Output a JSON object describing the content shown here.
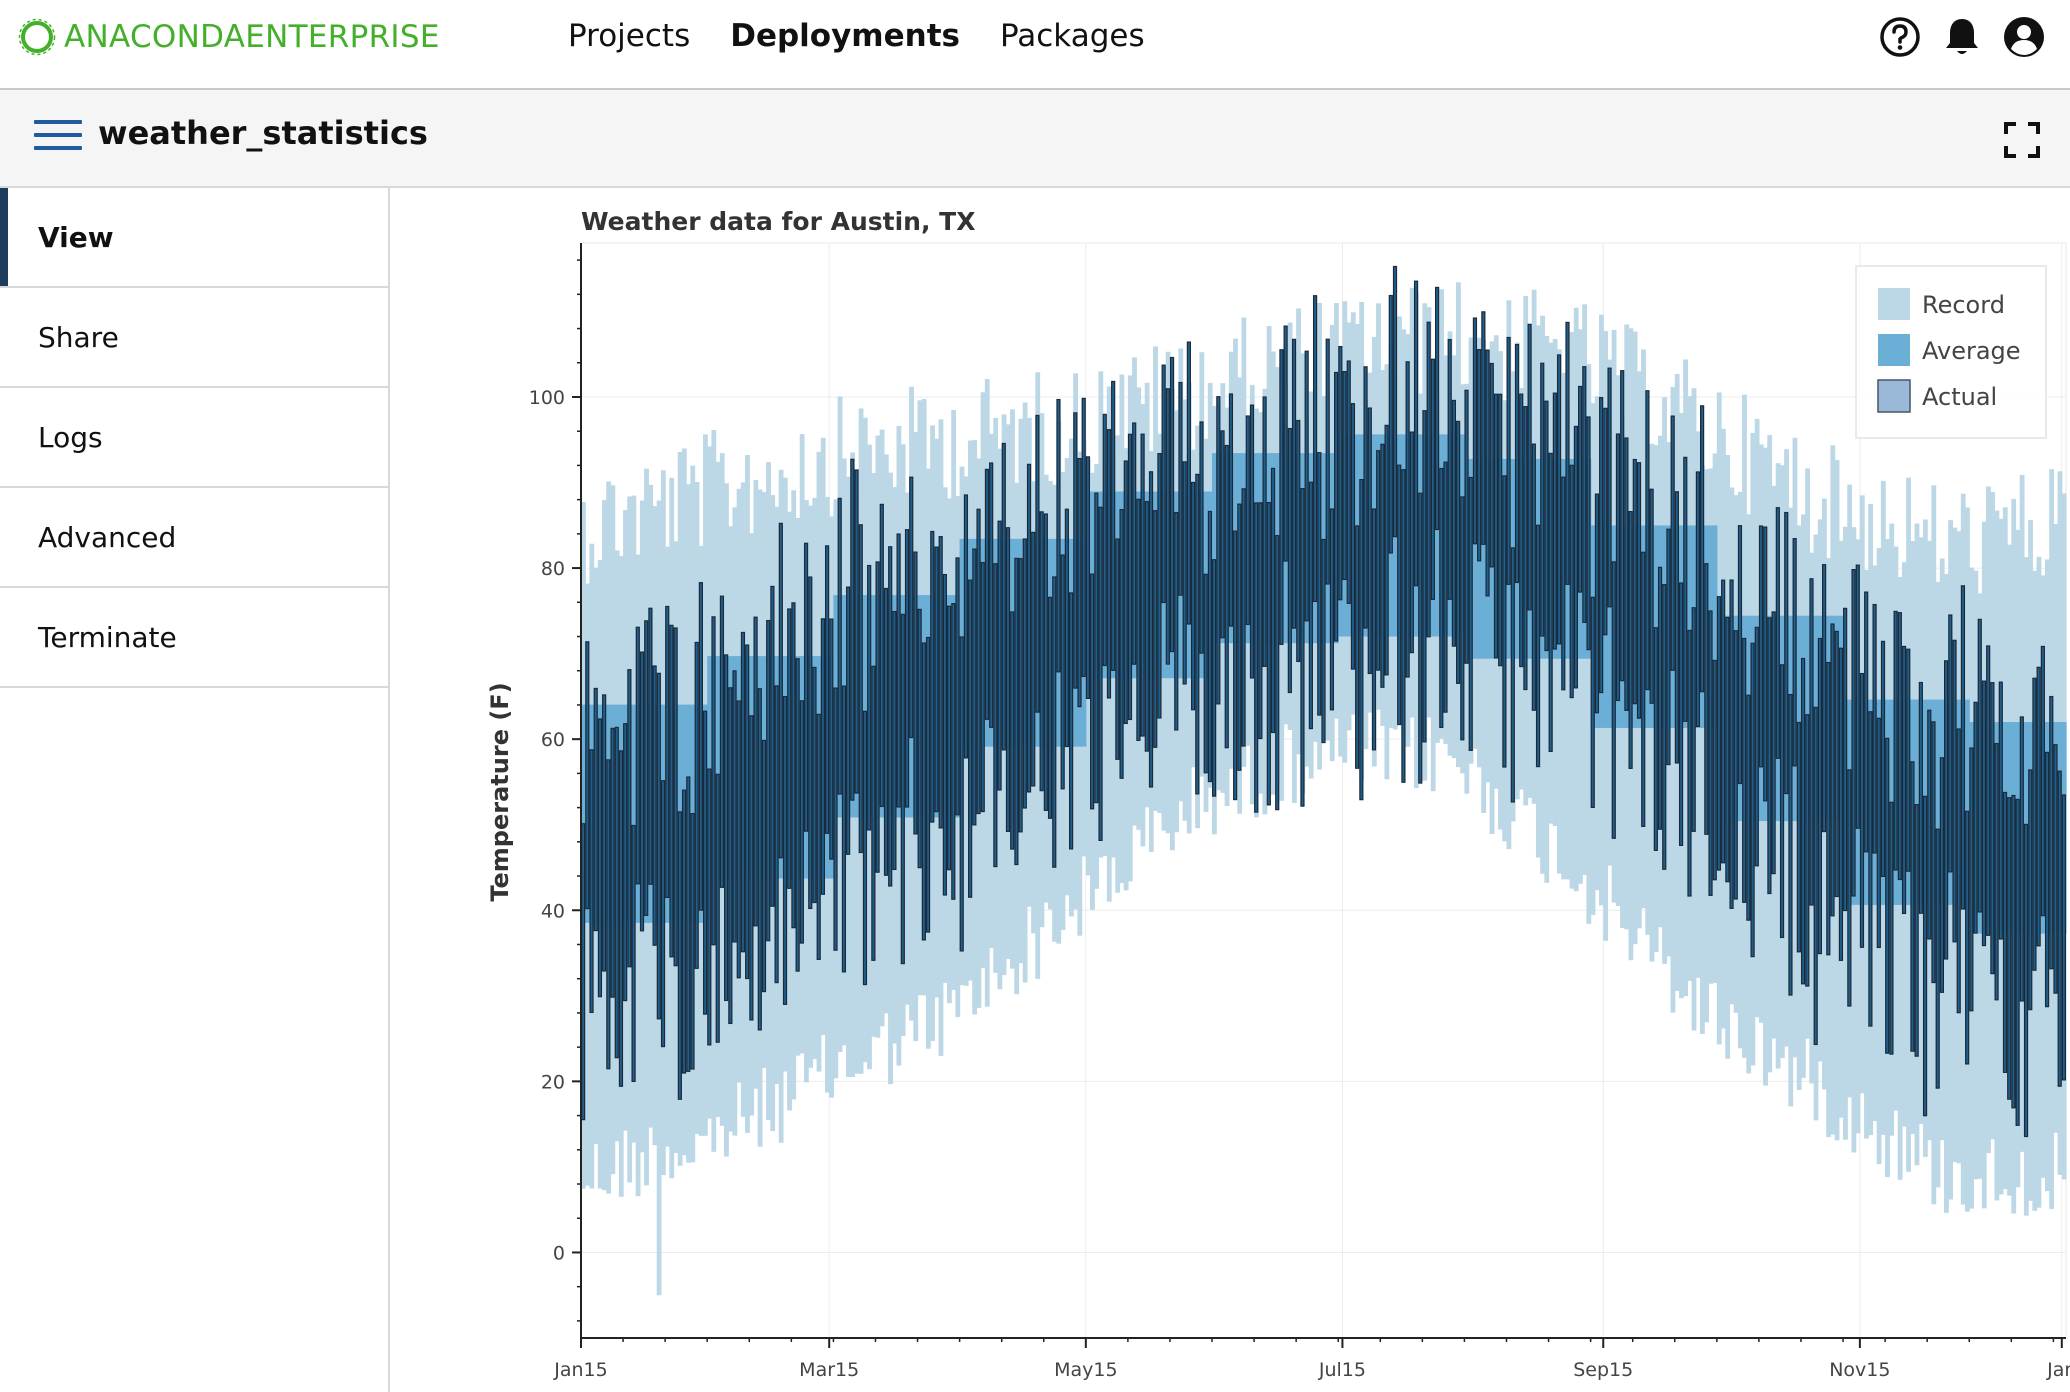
{
  "topbar": {
    "logo_text_bold": "ANACONDA",
    "logo_text_light": "ENTERPRISE",
    "nav": [
      {
        "label": "Projects",
        "active": false
      },
      {
        "label": "Deployments",
        "active": true
      },
      {
        "label": "Packages",
        "active": false
      }
    ],
    "icons": [
      "help-circle-icon",
      "bell-icon",
      "user-account-icon"
    ]
  },
  "header": {
    "title": "weather_statistics",
    "menu_icon": "hamburger-menu-icon",
    "fullscreen_icon": "fullscreen-icon"
  },
  "sidebar": {
    "items": [
      {
        "label": "View",
        "active": true
      },
      {
        "label": "Share",
        "active": false
      },
      {
        "label": "Logs",
        "active": false
      },
      {
        "label": "Advanced",
        "active": false
      },
      {
        "label": "Terminate",
        "active": false
      }
    ]
  },
  "colors": {
    "brand_green": "#43b02a",
    "record": "#bcd7e6",
    "average": "#6baed6",
    "actual_fill": "#1f5f8b",
    "actual_stroke": "#1b2a3a",
    "nav_active_bar": "#1d3d5c"
  },
  "chart_data": {
    "type": "bar",
    "title": "Weather data for Austin, TX",
    "xlabel": "",
    "ylabel": "Temperature (F)",
    "x_ticks": [
      "Jan15",
      "Mar15",
      "May15",
      "Jul15",
      "Sep15",
      "Nov15",
      "Jan"
    ],
    "y_ticks": [
      0,
      20,
      40,
      60,
      80,
      100
    ],
    "ylim": [
      -10,
      118
    ],
    "legend": {
      "placement": "top-right",
      "entries": [
        "Record",
        "Average",
        "Actual"
      ]
    },
    "grid": true,
    "series": [
      {
        "name": "Record",
        "monthly_low": [
          14,
          18,
          26,
          33,
          46,
          58,
          64,
          63,
          50,
          34,
          24,
          14
        ],
        "monthly_high": [
          88,
          92,
          96,
          98,
          100,
          104,
          108,
          110,
          108,
          100,
          91,
          86
        ]
      },
      {
        "name": "Average",
        "monthly_low": [
          37,
          40,
          47,
          54,
          63,
          70,
          72,
          72,
          68,
          58,
          47,
          38
        ],
        "monthly_high": [
          62,
          66,
          73,
          80,
          86,
          91,
          95,
          96,
          91,
          82,
          71,
          62
        ]
      },
      {
        "name": "Actual",
        "monthly_low": [
          32,
          35,
          45,
          52,
          60,
          68,
          72,
          74,
          69,
          57,
          43,
          35
        ],
        "monthly_high": [
          58,
          64,
          71,
          77,
          84,
          90,
          95,
          97,
          90,
          80,
          68,
          58
        ]
      }
    ]
  }
}
